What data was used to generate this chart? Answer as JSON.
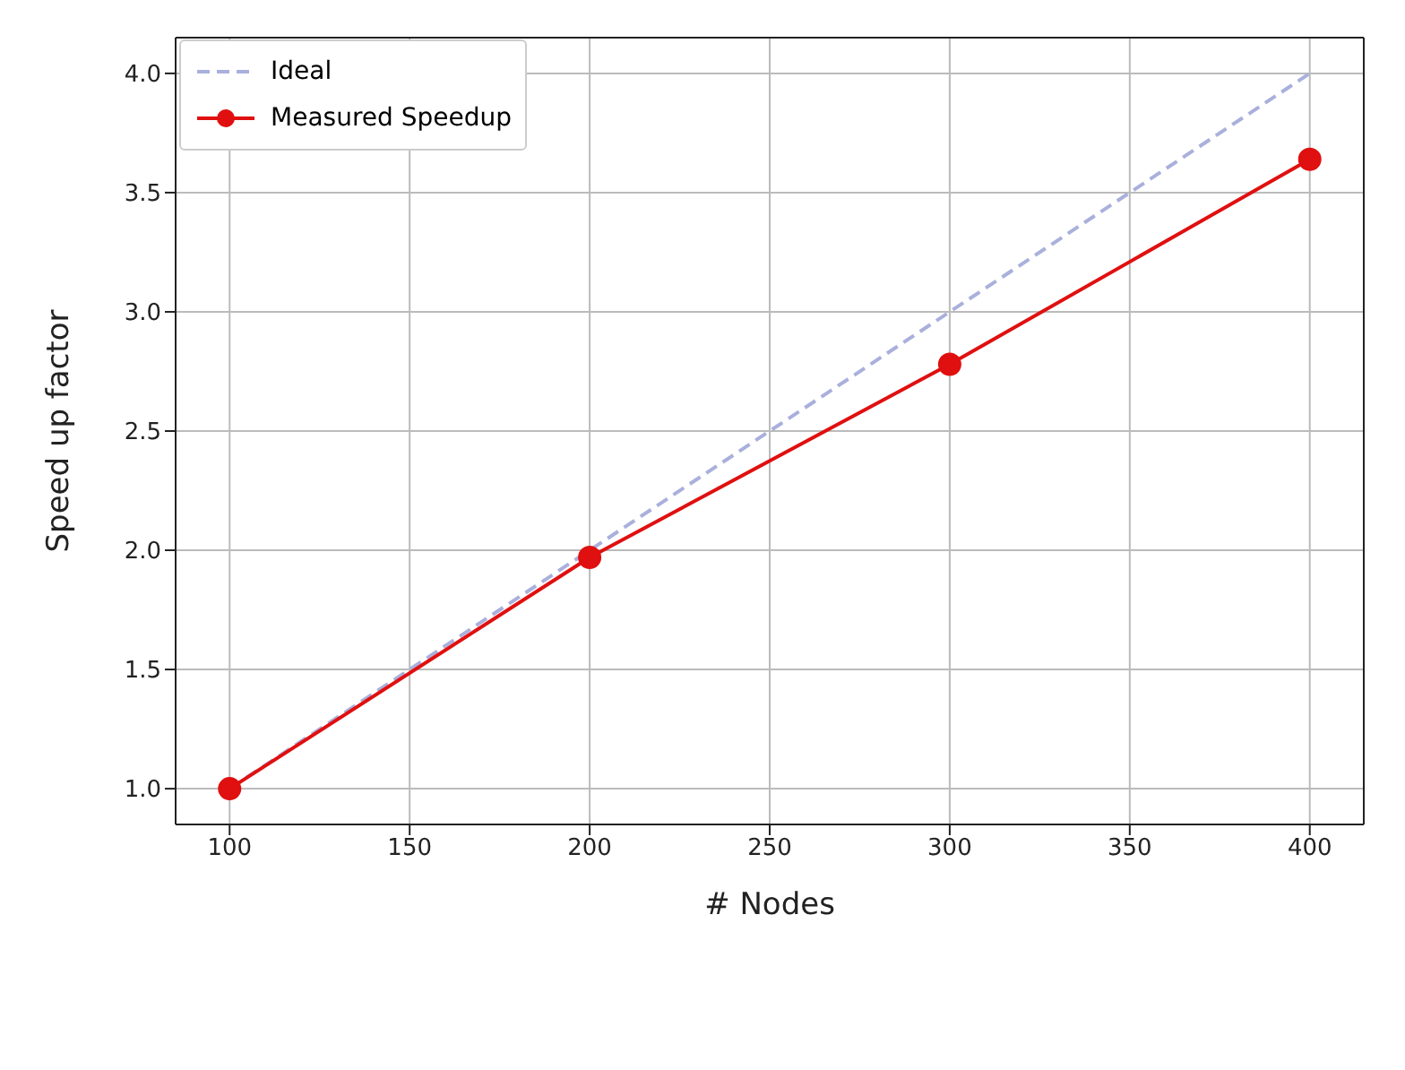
{
  "chart_data": {
    "type": "line",
    "xlabel": "# Nodes",
    "ylabel": "Speed up factor",
    "xlim": [
      85,
      415
    ],
    "xticks": [
      100,
      150,
      200,
      250,
      300,
      350,
      400
    ],
    "ylim": [
      0.85,
      4.15
    ],
    "yticks": [
      {
        "value": 1,
        "label": "1.0"
      },
      {
        "value": 1.5,
        "label": "1.5"
      },
      {
        "value": 2,
        "label": "2.0"
      },
      {
        "value": 2.5,
        "label": "2.5"
      },
      {
        "value": 3,
        "label": "3.0"
      },
      {
        "value": 3.5,
        "label": "3.5"
      },
      {
        "value": 4,
        "label": "4.0"
      }
    ],
    "grid": true,
    "legend": "top left",
    "series": [
      {
        "name": "Ideal",
        "color": "#aab0dc",
        "x": [
          100,
          200,
          300,
          400
        ],
        "values": [
          1,
          2,
          3,
          4
        ],
        "line_style": "dashed",
        "marker": "none"
      },
      {
        "name": "Measured Speedup",
        "color": "#e01010",
        "x": [
          100,
          200,
          300,
          400
        ],
        "values": [
          1,
          1.97,
          2.78,
          3.64
        ],
        "line_style": "solid",
        "marker": "circle"
      }
    ]
  }
}
